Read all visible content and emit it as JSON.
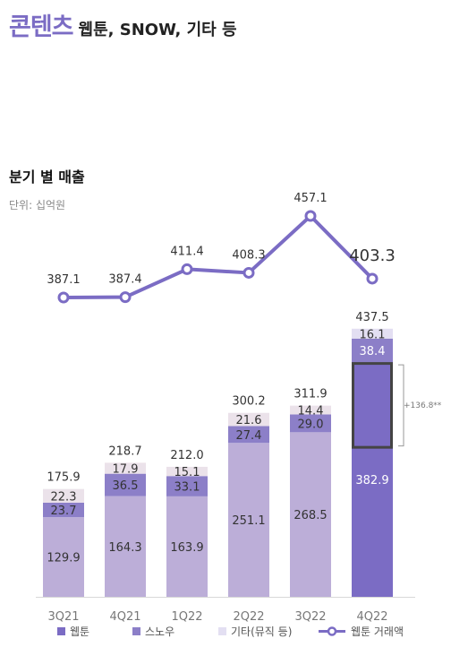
{
  "header": {
    "title_main": "콘텐츠",
    "title_sub": "웹툰, SNOW, 기타 등"
  },
  "chart_data": {
    "type": "bar",
    "stacked": true,
    "title": "분기 별 매출",
    "unit": "단위: 십억원",
    "categories": [
      "3Q21",
      "4Q21",
      "1Q22",
      "2Q22",
      "3Q22",
      "4Q22"
    ],
    "series": [
      {
        "name": "웹툰",
        "values": [
          129.9,
          164.3,
          163.9,
          251.1,
          268.5,
          382.9
        ]
      },
      {
        "name": "스노우",
        "values": [
          23.7,
          36.5,
          33.1,
          27.4,
          29.0,
          38.4
        ]
      },
      {
        "name": "기타(뮤직 등)",
        "values": [
          22.3,
          17.9,
          15.1,
          21.6,
          14.4,
          16.1
        ]
      }
    ],
    "totals": [
      "175.9",
      "218.7",
      "212.0",
      "300.2",
      "311.9",
      "437.5"
    ],
    "line_series": {
      "name": "웹툰 거래액",
      "values": [
        387.1,
        387.4,
        411.4,
        408.3,
        457.1,
        403.3
      ],
      "labels": [
        "387.1",
        "387.4",
        "411.4",
        "408.3",
        "457.1",
        "403.3"
      ]
    },
    "annotation": "+136.8**",
    "highlight_index": 5,
    "colors": {
      "webtoon": "#bcaed8",
      "webtoon_highlight": "#7b6cc4",
      "snow": "#8c7fc8",
      "other": "#ebe2ea",
      "other_highlight": "#e3dff2",
      "line": "#7b6cc4",
      "box": "#444444"
    },
    "legend_position": "bottom"
  }
}
